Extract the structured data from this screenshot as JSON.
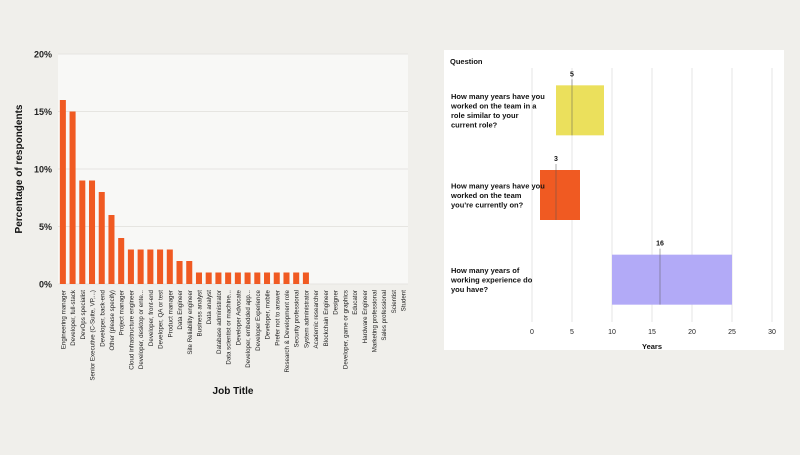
{
  "chart_data": [
    {
      "type": "bar",
      "title": "",
      "xlabel": "Job Title",
      "ylabel": "Percentage of respondents",
      "ylim": [
        0,
        20
      ],
      "yticks": [
        "0%",
        "5%",
        "10%",
        "15%",
        "20%"
      ],
      "grid": true,
      "bar_color": "#f05a22",
      "categories": [
        "Engineering manager",
        "Developer, full-stack",
        "DevOps specialist",
        "Senior Executive (C-Suite, VP,...)",
        "Developer, back-end",
        "Other (please specify)",
        "Project manager",
        "Cloud infrastructure engineer",
        "Developer, desktop or ente...",
        "Developer, front-end",
        "Developer, QA or test",
        "Product manager",
        "Data Engineer",
        "Site Reliability engineer",
        "Business analyst",
        "Data analyst",
        "Database administrator",
        "Data scientist or machine...",
        "Developer Advocate",
        "Developer, embedded app...",
        "Developer Experience",
        "Developer, mobile",
        "Prefer not to answer",
        "Research & Development role",
        "Security professional",
        "System administrator",
        "Academic researcher",
        "Blockchain Engineer",
        "Designer",
        "Developer, game or graphics",
        "Educator",
        "Hardware Engineer",
        "Marketing professional",
        "Sales professional",
        "Scientist",
        "Student"
      ],
      "values": [
        16,
        15,
        9,
        9,
        8,
        6,
        4,
        3,
        3,
        3,
        3,
        3,
        2,
        2,
        1,
        1,
        1,
        1,
        1,
        1,
        1,
        1,
        1,
        1,
        1,
        1,
        0,
        0,
        0,
        0,
        0,
        0,
        0,
        0,
        0,
        0
      ]
    },
    {
      "type": "box",
      "ylabel": "Question",
      "xlabel": "Years",
      "xlim": [
        0,
        30
      ],
      "xticks": [
        "0",
        "5",
        "10",
        "15",
        "20",
        "25",
        "30"
      ],
      "grid": true,
      "series": [
        {
          "question": "How many years have you worked on the team in a role similar to your current role?",
          "q1": 3,
          "median": 5,
          "q3": 9,
          "median_label": "5",
          "color": "#ebe05c"
        },
        {
          "question": "How many years have you worked on the team you're currently on?",
          "q1": 1,
          "median": 3,
          "q3": 6,
          "median_label": "3",
          "color": "#f05a22"
        },
        {
          "question": "How many years of working experience do you have?",
          "q1": 10,
          "median": 16,
          "q3": 25,
          "median_label": "16",
          "color": "#b2aaf7"
        }
      ]
    }
  ]
}
